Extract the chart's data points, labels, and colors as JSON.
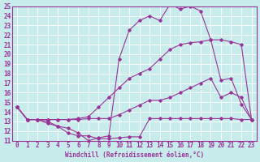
{
  "xlabel": "Windchill (Refroidissement éolien,°C)",
  "background_color": "#c8ecec",
  "line_color": "#993399",
  "xlim": [
    -0.5,
    23.5
  ],
  "ylim": [
    11,
    25
  ],
  "yticks": [
    11,
    12,
    13,
    14,
    15,
    16,
    17,
    18,
    19,
    20,
    21,
    22,
    23,
    24,
    25
  ],
  "xticks": [
    0,
    1,
    2,
    3,
    4,
    5,
    6,
    7,
    8,
    9,
    10,
    11,
    12,
    13,
    14,
    15,
    16,
    17,
    18,
    19,
    20,
    21,
    22,
    23
  ],
  "lines": [
    [
      14.5,
      13.2,
      13.2,
      13.0,
      12.5,
      11.8,
      11.5,
      11.5,
      11.2,
      11.2,
      11.3,
      11.4,
      11.4,
      13.3,
      13.3,
      13.3,
      13.3,
      13.3,
      13.3,
      13.3,
      13.3,
      13.3,
      13.2,
      13.2
    ],
    [
      14.5,
      13.2,
      13.2,
      13.2,
      13.2,
      13.2,
      13.2,
      13.3,
      13.3,
      13.3,
      13.7,
      14.2,
      14.7,
      15.2,
      15.2,
      15.5,
      16.0,
      16.5,
      17.0,
      17.5,
      15.5,
      16.0,
      15.5,
      13.2
    ],
    [
      14.5,
      13.2,
      13.2,
      13.2,
      13.2,
      13.2,
      13.3,
      13.5,
      14.5,
      15.5,
      16.5,
      17.5,
      18.0,
      18.5,
      19.5,
      20.5,
      21.0,
      21.2,
      21.3,
      21.5,
      21.5,
      21.3,
      21.0,
      13.2
    ],
    [
      14.5,
      13.2,
      13.2,
      12.8,
      12.5,
      12.3,
      11.8,
      11.0,
      11.3,
      11.5,
      19.5,
      22.5,
      23.5,
      24.0,
      23.5,
      25.2,
      24.7,
      25.0,
      24.5,
      21.5,
      17.3,
      17.5,
      14.8,
      13.2
    ]
  ]
}
